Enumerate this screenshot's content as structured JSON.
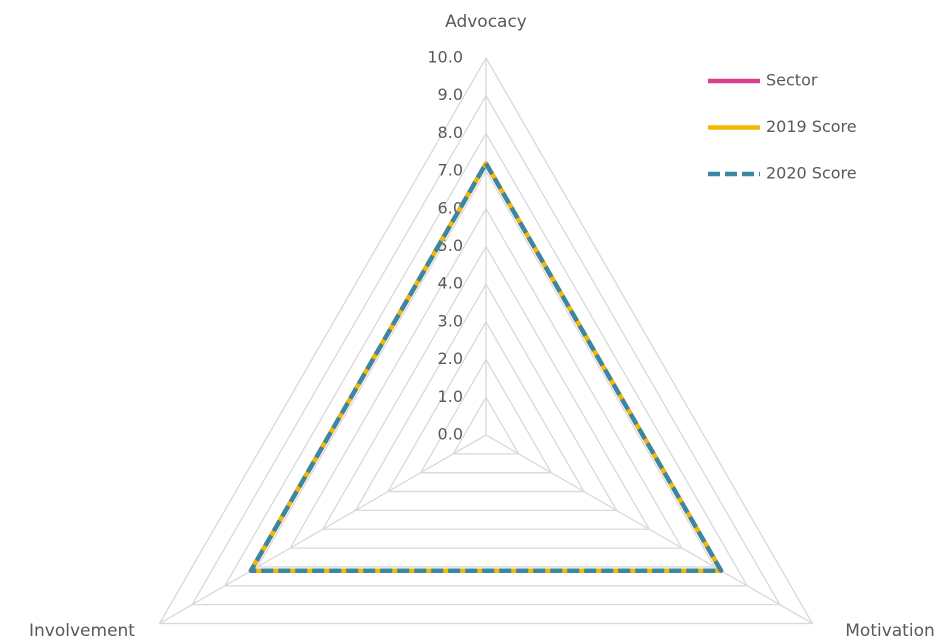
{
  "chart_data": {
    "type": "radar",
    "categories": [
      "Advocacy",
      "Motivation",
      "Involvement"
    ],
    "series": [
      {
        "name": "Sector",
        "color": "#d9418c",
        "values": [
          7.2,
          7.2,
          7.2
        ]
      },
      {
        "name": "2019 Score",
        "color": "#f5b800",
        "values": [
          7.2,
          7.2,
          7.2
        ]
      },
      {
        "name": "2020 Score",
        "color": "#3a86a3",
        "dashed": true,
        "values": [
          7.2,
          7.2,
          7.2
        ]
      }
    ],
    "ylim": [
      0,
      10
    ],
    "yticks": [
      {
        "value": 0,
        "label": "0.0"
      },
      {
        "value": 1,
        "label": "1.0"
      },
      {
        "value": 2,
        "label": "2.0"
      },
      {
        "value": 3,
        "label": "3.0"
      },
      {
        "value": 4,
        "label": "4.0"
      },
      {
        "value": 5,
        "label": "5.0"
      },
      {
        "value": 6,
        "label": "6.0"
      },
      {
        "value": 7,
        "label": "7.0"
      },
      {
        "value": 8,
        "label": "8.0"
      },
      {
        "value": 9,
        "label": "9.0"
      },
      {
        "value": 10,
        "label": "10.0"
      }
    ],
    "grid": true,
    "legend": "top-right"
  }
}
